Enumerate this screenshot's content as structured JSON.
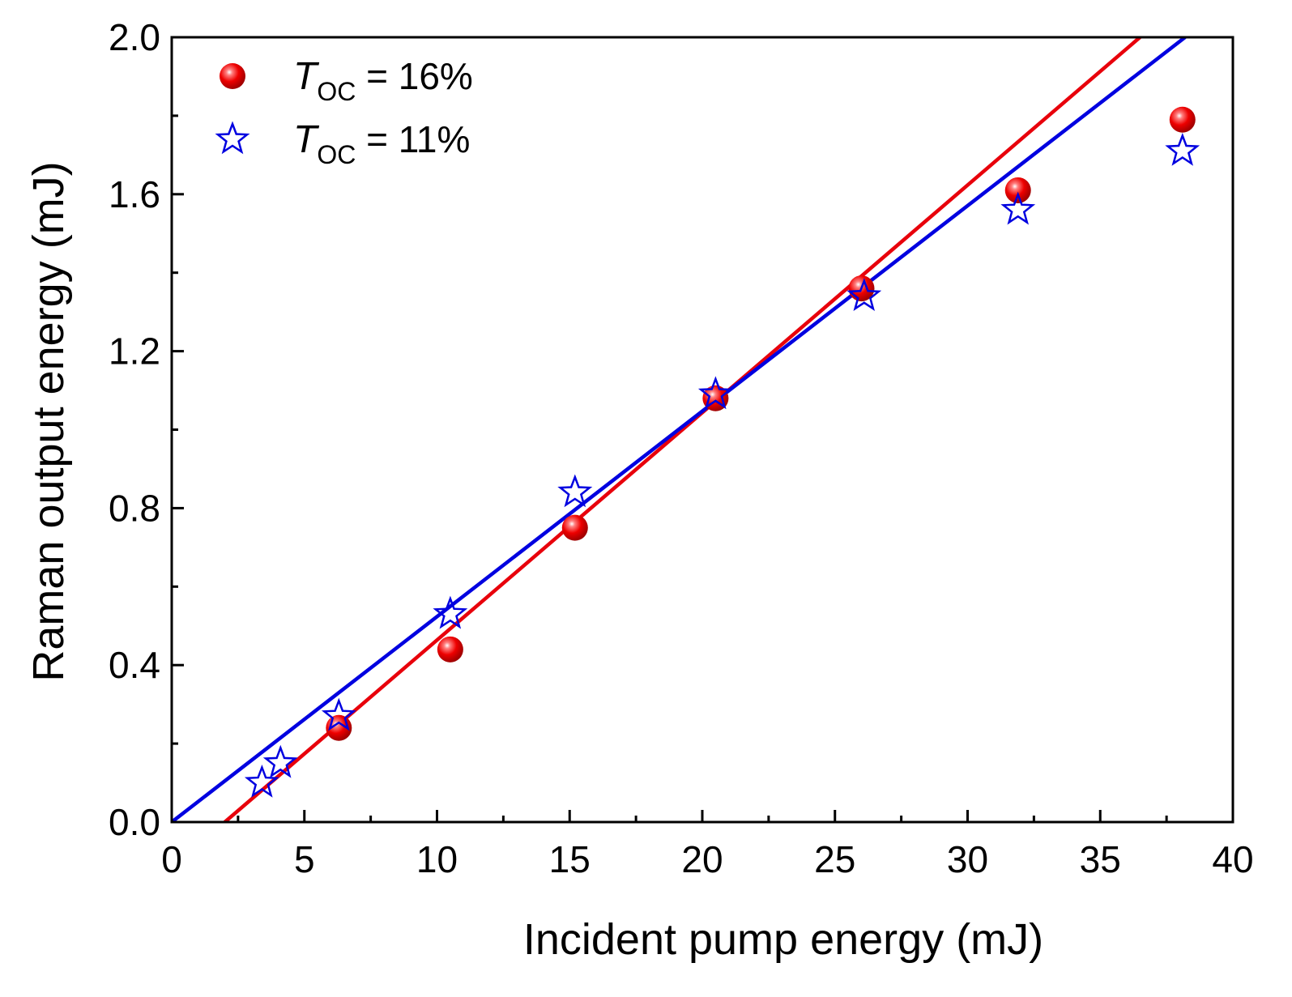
{
  "chart_data": {
    "type": "scatter",
    "title": "",
    "xlabel": "Incident pump energy (mJ)",
    "ylabel": "Raman output energy (mJ)",
    "xlim": [
      0,
      40
    ],
    "ylim": [
      0.0,
      2.0
    ],
    "x_ticks": [
      0,
      5,
      10,
      15,
      20,
      25,
      30,
      35,
      40
    ],
    "x_tick_labels": [
      "0",
      "5",
      "10",
      "15",
      "20",
      "25",
      "30",
      "35",
      "40"
    ],
    "y_ticks": [
      0.0,
      0.4,
      0.8,
      1.2,
      1.6,
      2.0
    ],
    "y_tick_labels": [
      "0.0",
      "0.4",
      "0.8",
      "1.2",
      "1.6",
      "2.0"
    ],
    "grid": false,
    "legend_position": "top-left",
    "series": [
      {
        "name": "T_OC = 16%",
        "legend_symbol": "T",
        "legend_subscript": "OC",
        "legend_suffix": " = 16%",
        "marker": "sphere",
        "color": "#e8000b",
        "x": [
          6.3,
          10.5,
          15.2,
          20.5,
          26.0,
          31.9,
          38.1
        ],
        "y": [
          0.24,
          0.44,
          0.75,
          1.08,
          1.36,
          1.61,
          1.79
        ],
        "fit_line": {
          "x": [
            2.0,
            36.5
          ],
          "y": [
            0.0,
            2.0
          ]
        }
      },
      {
        "name": "T_OC = 11%",
        "legend_symbol": "T",
        "legend_subscript": "OC",
        "legend_suffix": " = 11%",
        "marker": "star-open",
        "color": "#0000e0",
        "x": [
          3.4,
          4.1,
          6.3,
          10.5,
          15.2,
          20.5,
          26.1,
          31.9,
          38.1
        ],
        "y": [
          0.1,
          0.15,
          0.27,
          0.53,
          0.84,
          1.09,
          1.34,
          1.56,
          1.71
        ],
        "fit_line": {
          "x": [
            0.0,
            38.2
          ],
          "y": [
            0.0,
            2.0
          ]
        }
      }
    ]
  }
}
